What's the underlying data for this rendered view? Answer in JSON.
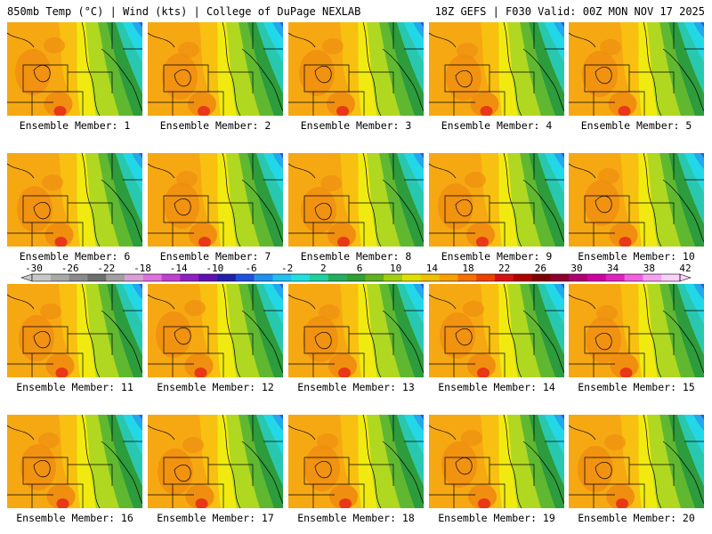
{
  "header": {
    "left": "850mb Temp (°C) | Wind (kts) | College of DuPage NEXLAB",
    "right": "18Z GEFS | F030 Valid: 00Z MON NOV 17 2025"
  },
  "member_prefix": "Ensemble Member: ",
  "members": [
    "1",
    "2",
    "3",
    "4",
    "5",
    "6",
    "7",
    "8",
    "9",
    "10",
    "11",
    "12",
    "13",
    "14",
    "15",
    "16",
    "17",
    "18",
    "19",
    "20"
  ],
  "colorbar": {
    "labels": [
      "-30",
      "-26",
      "-22",
      "-18",
      "-14",
      "-10",
      "-6",
      "-2",
      "2",
      "6",
      "10",
      "14",
      "18",
      "22",
      "26",
      "30",
      "34",
      "38",
      "42"
    ],
    "colors": [
      "#c8c8c8",
      "#a8a8a8",
      "#8a8a8a",
      "#6e6e6e",
      "#a0a0a0",
      "#d8a0d8",
      "#e070e0",
      "#c040d0",
      "#9020c0",
      "#6010b0",
      "#2020a8",
      "#2050e0",
      "#2090f0",
      "#20c0f0",
      "#20e0e0",
      "#20d0a0",
      "#20b060",
      "#30a030",
      "#60b020",
      "#a0d010",
      "#e0e000",
      "#f0c000",
      "#f8a000",
      "#f87000",
      "#f04000",
      "#d81010",
      "#b00000",
      "#800000",
      "#900030",
      "#b00070",
      "#d000a0",
      "#e020c0",
      "#f060e0",
      "#f8a0f0",
      "#fcd0fc"
    ]
  },
  "palette": {
    "orange": "#f08e10",
    "light_orange": "#f6a812",
    "gold": "#f8c010",
    "yellow": "#f0ea10",
    "yellow_green": "#b0d820",
    "green": "#60b830",
    "dark_green": "#2c9c3c",
    "teal": "#28c8b0",
    "cyan": "#20d8e8",
    "sky": "#20a8f0",
    "blue": "#2060e0",
    "red": "#e83818"
  }
}
